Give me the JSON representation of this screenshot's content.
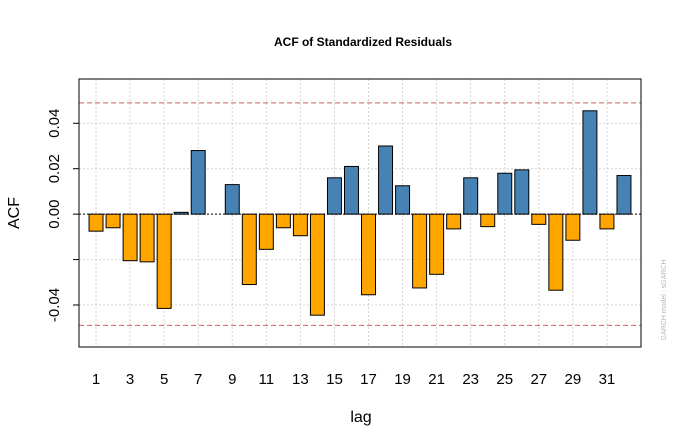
{
  "chart_data": {
    "type": "bar",
    "title": "ACF of Standardized Residuals",
    "xlabel": "lag",
    "ylabel": "ACF",
    "xlim": [
      0,
      33
    ],
    "ylim": [
      -0.0585,
      0.0595
    ],
    "x_ticks": [
      1,
      3,
      5,
      7,
      9,
      11,
      13,
      15,
      17,
      19,
      21,
      23,
      25,
      27,
      29,
      31
    ],
    "y_ticks": [
      {
        "value": 0.04,
        "label": "0.04"
      },
      {
        "value": 0.02,
        "label": "0.02"
      },
      {
        "value": 0.0,
        "label": "0.00"
      },
      {
        "value": -0.02,
        "label": ""
      },
      {
        "value": -0.04,
        "label": "-0.04"
      }
    ],
    "grid": true,
    "confidence_band": 0.049,
    "lags": [
      1,
      2,
      3,
      4,
      5,
      6,
      7,
      8,
      9,
      10,
      11,
      12,
      13,
      14,
      15,
      16,
      17,
      18,
      19,
      20,
      21,
      22,
      23,
      24,
      25,
      26,
      27,
      28,
      29,
      30,
      31,
      32
    ],
    "values": [
      -0.0075,
      -0.006,
      -0.0205,
      -0.021,
      -0.0415,
      0.0008,
      0.028,
      0.0,
      0.013,
      -0.031,
      -0.0155,
      -0.006,
      -0.0095,
      -0.0445,
      0.016,
      0.021,
      -0.0355,
      0.03,
      0.0125,
      -0.0325,
      -0.0265,
      -0.0065,
      0.016,
      -0.0055,
      0.018,
      0.0195,
      -0.0045,
      -0.0335,
      -0.0115,
      0.0455,
      -0.0065,
      0.017
    ],
    "side_note": "GARCH model : sGARCH"
  },
  "colors": {
    "positive_bar": "#4682b4",
    "negative_bar": "#ffa500",
    "bar_border": "#000000",
    "confidence_line": "#cd5c5c",
    "zero_line": "#000000",
    "grid": "#d3d3d3",
    "frame": "#000000"
  }
}
